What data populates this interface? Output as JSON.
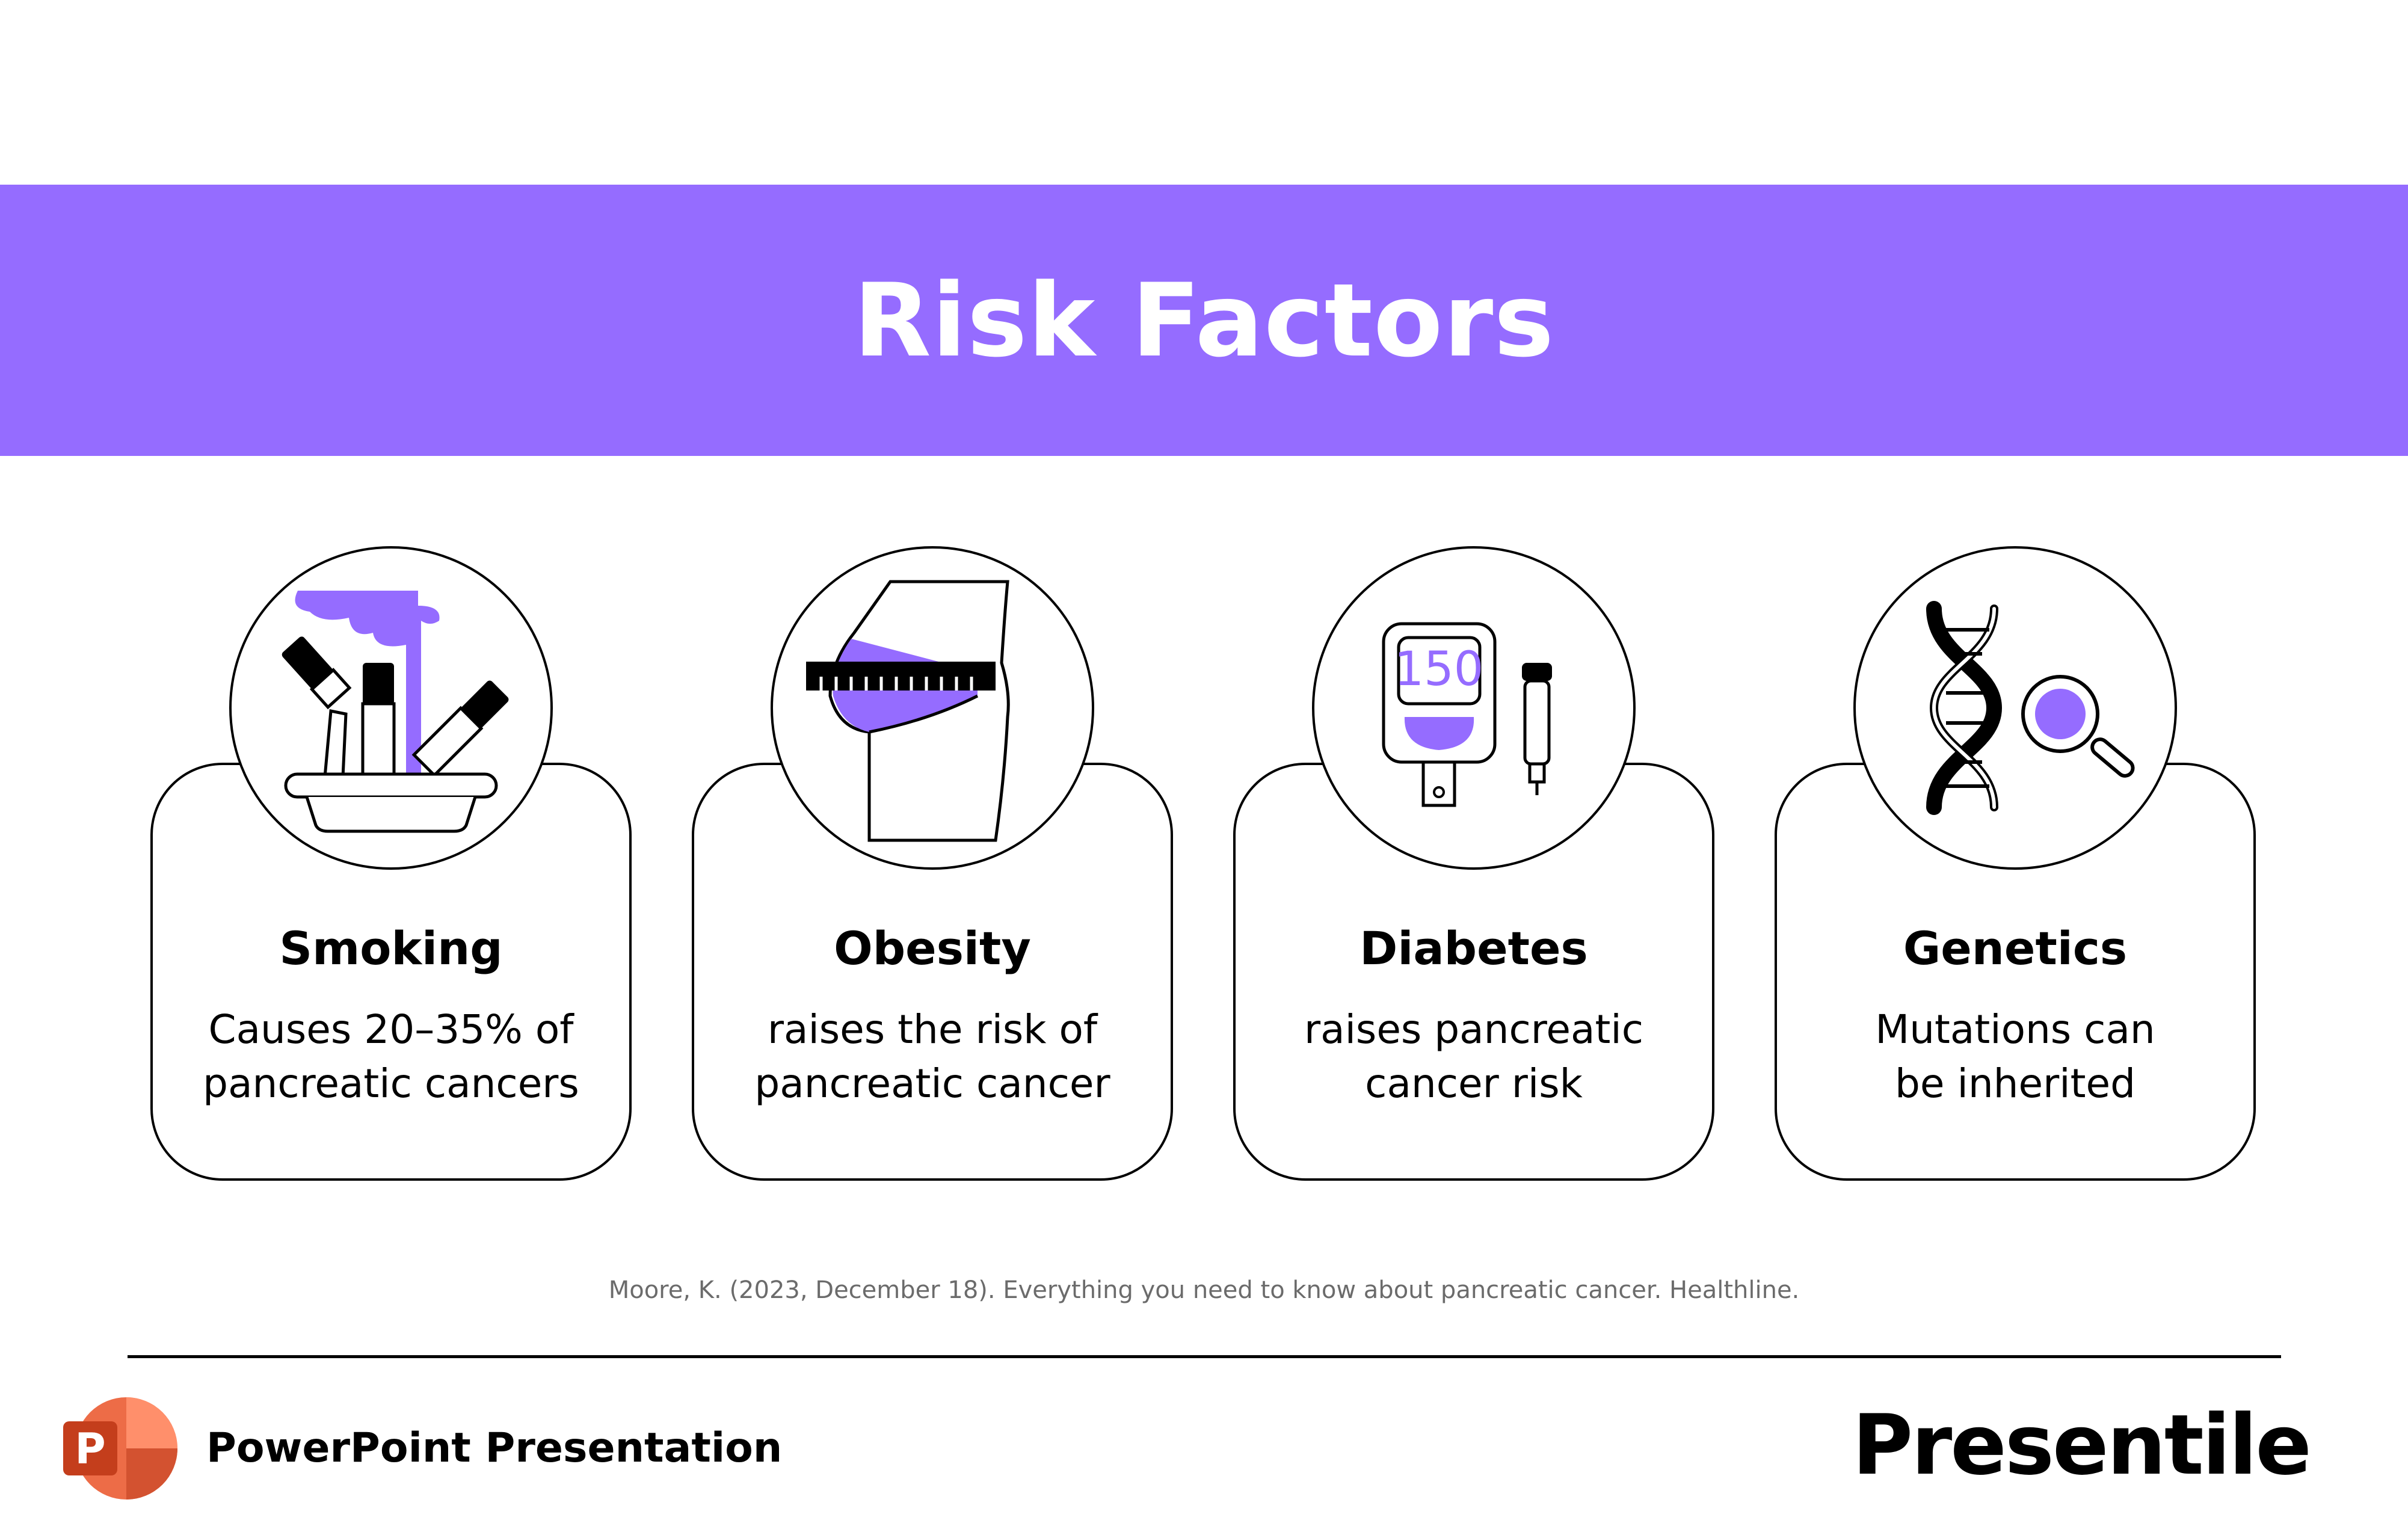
{
  "slide": {
    "title": "Risk Factors",
    "accent_color": "#956cff"
  },
  "cards": [
    {
      "title": "Smoking",
      "line1": "Causes 20–35% of",
      "line2": "pancreatic cancers",
      "icon": "smoking-icon"
    },
    {
      "title": "Obesity",
      "line1": "raises the risk of",
      "line2": "pancreatic cancer",
      "icon": "obesity-icon"
    },
    {
      "title": "Diabetes",
      "line1": "raises pancreatic",
      "line2": "cancer risk",
      "icon": "glucose-meter-icon",
      "meter_reading": "150"
    },
    {
      "title": "Genetics",
      "line1": "Mutations can",
      "line2": "be inherited",
      "icon": "dna-icon"
    }
  ],
  "citation": "Moore, K. (2023, December 18). Everything you need to know about pancreatic cancer. Healthline.",
  "footer": {
    "label": "PowerPoint Presentation",
    "logo_letter": "P",
    "brand": "Presentile"
  }
}
